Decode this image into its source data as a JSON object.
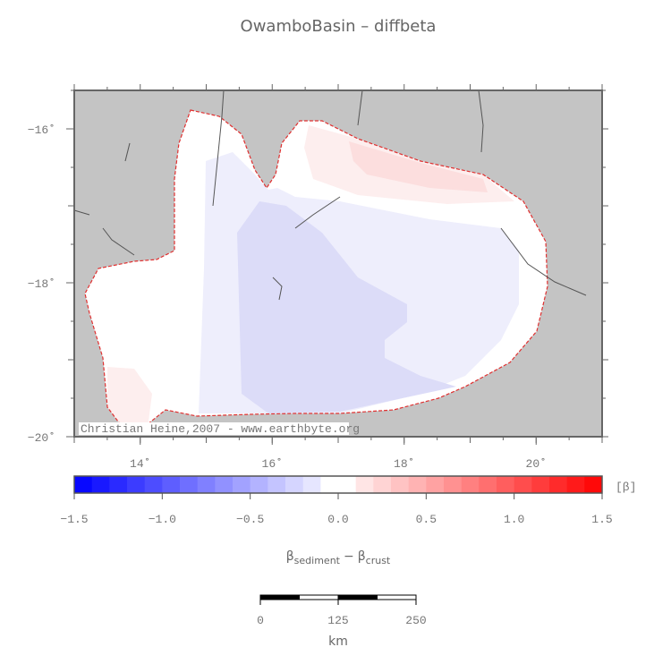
{
  "title": "OwamboBasin – diffbeta",
  "credit": "Christian Heine,2007 - www.earthbyte.org",
  "map": {
    "xlim": [
      13,
      21
    ],
    "ylim": [
      -20,
      -15.5
    ],
    "xticks": [
      {
        "value": 14,
        "label": "14˚"
      },
      {
        "value": 16,
        "label": "16˚"
      },
      {
        "value": 18,
        "label": "18˚"
      },
      {
        "value": 20,
        "label": "20˚"
      }
    ],
    "yticks": [
      {
        "value": -16,
        "label": "−16˚"
      },
      {
        "value": -18,
        "label": "−18˚"
      },
      {
        "value": -20,
        "label": "−20˚"
      }
    ]
  },
  "colorbar": {
    "clim": [
      -1.5,
      1.5
    ],
    "unit": "[β]",
    "ticks": [
      {
        "value": -1.5,
        "label": "−1.5"
      },
      {
        "value": -1.0,
        "label": "−1.0"
      },
      {
        "value": -0.5,
        "label": "−0.5"
      },
      {
        "value": 0,
        "label": "0.0"
      },
      {
        "value": 0.5,
        "label": "0.5"
      },
      {
        "value": 1.0,
        "label": "1.0"
      },
      {
        "value": 1.5,
        "label": "1.5"
      }
    ],
    "label": {
      "symbol": "β",
      "sub1": "sediment",
      "op": "−",
      "sub2": "crust"
    }
  },
  "scalebar": {
    "ticks": [
      0,
      125,
      250
    ],
    "unit": "km"
  }
}
